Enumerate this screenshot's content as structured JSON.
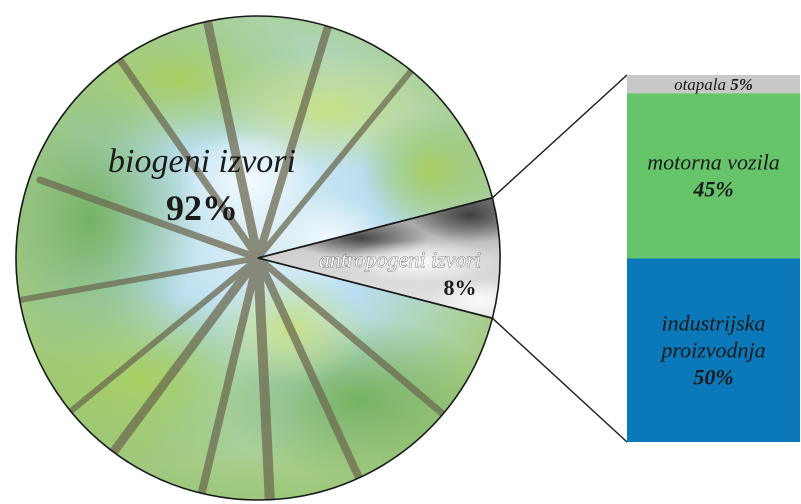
{
  "chart_data": [
    {
      "type": "pie",
      "slices": [
        {
          "label": "biogeni izvori",
          "value_label": "92%",
          "value": 92,
          "fill": "forest-canopy-photo"
        },
        {
          "label": "antropogeni izvori",
          "value_label": "8%",
          "value": 8,
          "fill": "smoke-photo"
        }
      ]
    },
    {
      "type": "bar",
      "stacked": true,
      "breakdown_of": "antropogeni izvori",
      "segments": [
        {
          "label": "otapala",
          "value_label": "5%",
          "value": 5,
          "color": "#c8c8c8"
        },
        {
          "label": "motorna vozila",
          "value_label": "45%",
          "value": 45,
          "color": "#66c46a"
        },
        {
          "label": "industrijska proizvodnja",
          "value_label": "50%",
          "value": 50,
          "color": "#0a78b9"
        }
      ]
    }
  ]
}
